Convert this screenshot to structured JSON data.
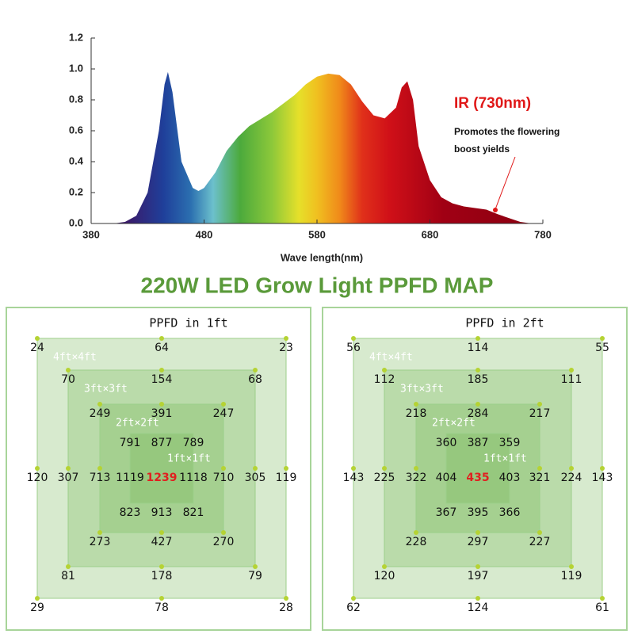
{
  "chart_data": {
    "type": "area",
    "x": [
      400,
      410,
      420,
      430,
      440,
      445,
      448,
      452,
      460,
      470,
      475,
      480,
      490,
      500,
      510,
      520,
      540,
      560,
      570,
      580,
      590,
      600,
      610,
      620,
      630,
      640,
      650,
      655,
      660,
      665,
      670,
      680,
      690,
      700,
      710,
      720,
      730,
      740,
      760,
      770
    ],
    "values": [
      0,
      0.01,
      0.05,
      0.2,
      0.6,
      0.9,
      0.98,
      0.85,
      0.4,
      0.23,
      0.21,
      0.23,
      0.33,
      0.47,
      0.56,
      0.63,
      0.72,
      0.83,
      0.9,
      0.95,
      0.97,
      0.96,
      0.9,
      0.79,
      0.7,
      0.68,
      0.75,
      0.88,
      0.92,
      0.8,
      0.5,
      0.28,
      0.17,
      0.13,
      0.11,
      0.1,
      0.09,
      0.06,
      0.01,
      0
    ],
    "xlim": [
      380,
      780
    ],
    "xticks": [
      380,
      480,
      580,
      680,
      780
    ],
    "ylim": [
      0,
      1.2
    ],
    "yticks": [
      {
        "value": 0,
        "label": "0.0"
      },
      0.2,
      0.4,
      0.6,
      0.8,
      {
        "value": 1,
        "label": "1.0"
      },
      1.2
    ],
    "xlabel": "Wave length(nm)",
    "annotation": {
      "title": "IR (730nm)",
      "lines": [
        "Promotes the flowering",
        "boost yields"
      ]
    }
  },
  "heading": "220W LED Grow Light PPFD MAP",
  "ppfd_maps": [
    {
      "title": "PPFD in 1ft",
      "squares": [
        {
          "label": "4ft×4ft",
          "values": [
            24,
            64,
            23,
            120,
            119,
            29,
            78,
            28
          ]
        },
        {
          "label": "3ft×3ft",
          "values": [
            70,
            154,
            68,
            307,
            305,
            81,
            178,
            79
          ]
        },
        {
          "label": "2ft×2ft",
          "values": [
            249,
            391,
            247,
            713,
            710,
            273,
            427,
            270
          ]
        },
        {
          "label": "1ft×1ft",
          "values": [
            791,
            877,
            789,
            1119,
            1239,
            1118,
            823,
            913,
            821
          ]
        }
      ]
    },
    {
      "title": "PPFD in 2ft",
      "squares": [
        {
          "label": "4ft×4ft",
          "values": [
            56,
            114,
            55,
            143,
            143,
            62,
            124,
            61
          ]
        },
        {
          "label": "3ft×3ft",
          "values": [
            112,
            185,
            111,
            225,
            224,
            120,
            197,
            119
          ]
        },
        {
          "label": "2ft×2ft",
          "values": [
            218,
            284,
            217,
            322,
            321,
            228,
            297,
            227
          ]
        },
        {
          "label": "1ft×1ft",
          "values": [
            360,
            387,
            359,
            404,
            435,
            403,
            367,
            395,
            366
          ]
        }
      ]
    }
  ]
}
